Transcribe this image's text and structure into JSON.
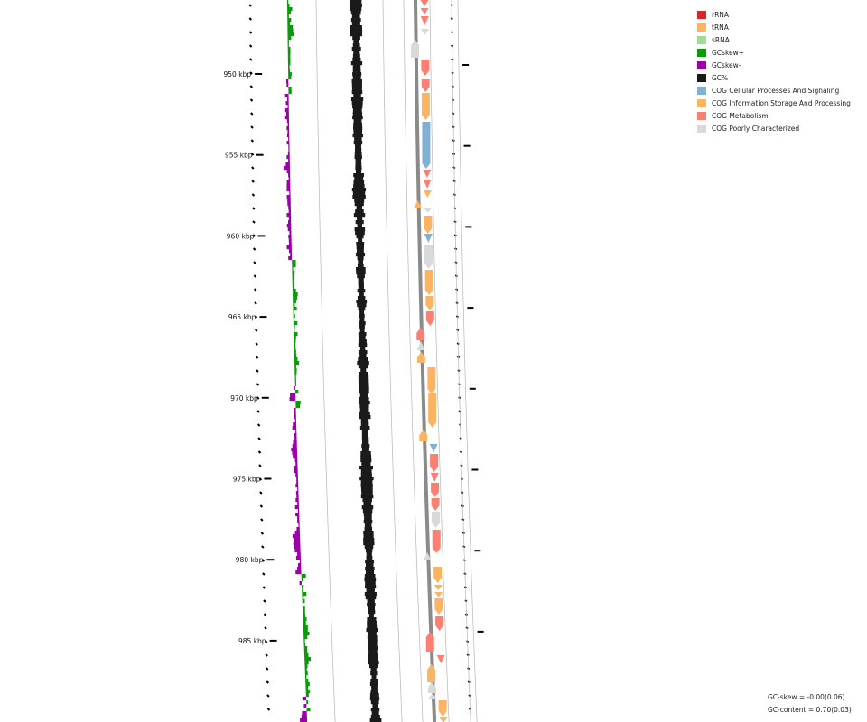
{
  "colors": {
    "rRNA": "#d62728",
    "tRNA": "#fdb462",
    "sRNA": "#a1d99b",
    "gc_skew_plus": "#0a9a0a",
    "gc_skew_minus": "#9900a6",
    "gc_content": "#1a1a1a",
    "cog_cellular": "#80b1d3",
    "cog_information": "#fdb462",
    "cog_metabolism": "#fb8072",
    "cog_poorly": "#d9d9d9"
  },
  "legend": [
    {
      "label": "rRNA",
      "color": "#d62728",
      "name": "legend-rrna"
    },
    {
      "label": "tRNA",
      "color": "#fdb462",
      "name": "legend-trna"
    },
    {
      "label": "sRNA",
      "color": "#a1d99b",
      "name": "legend-srna"
    },
    {
      "label": "GCskew+",
      "color": "#0a9a0a",
      "name": "legend-gcskew-plus"
    },
    {
      "label": "GCskew-",
      "color": "#9900a6",
      "name": "legend-gcskew-minus"
    },
    {
      "label": "GC%",
      "color": "#1a1a1a",
      "name": "legend-gc-content"
    },
    {
      "label": "COG Cellular Processes And Signaling",
      "color": "#80b1d3",
      "name": "legend-cog-cellular"
    },
    {
      "label": "COG Information Storage And Processing",
      "color": "#fdb462",
      "name": "legend-cog-information"
    },
    {
      "label": "COG Metabolism",
      "color": "#fb8072",
      "name": "legend-cog-metabolism"
    },
    {
      "label": "COG Poorly Characterized",
      "color": "#d9d9d9",
      "name": "legend-cog-poorly"
    }
  ],
  "scale_labels": [
    "950 kbp",
    "955 kbp",
    "960 kbp",
    "965 kbp",
    "970 kbp",
    "975 kbp",
    "980 kbp",
    "985 kbp"
  ],
  "stats": {
    "gc_skew": "GC-skew = -0.00(0.06)",
    "gc_content": "GC-content = 0.70(0.03)"
  }
}
